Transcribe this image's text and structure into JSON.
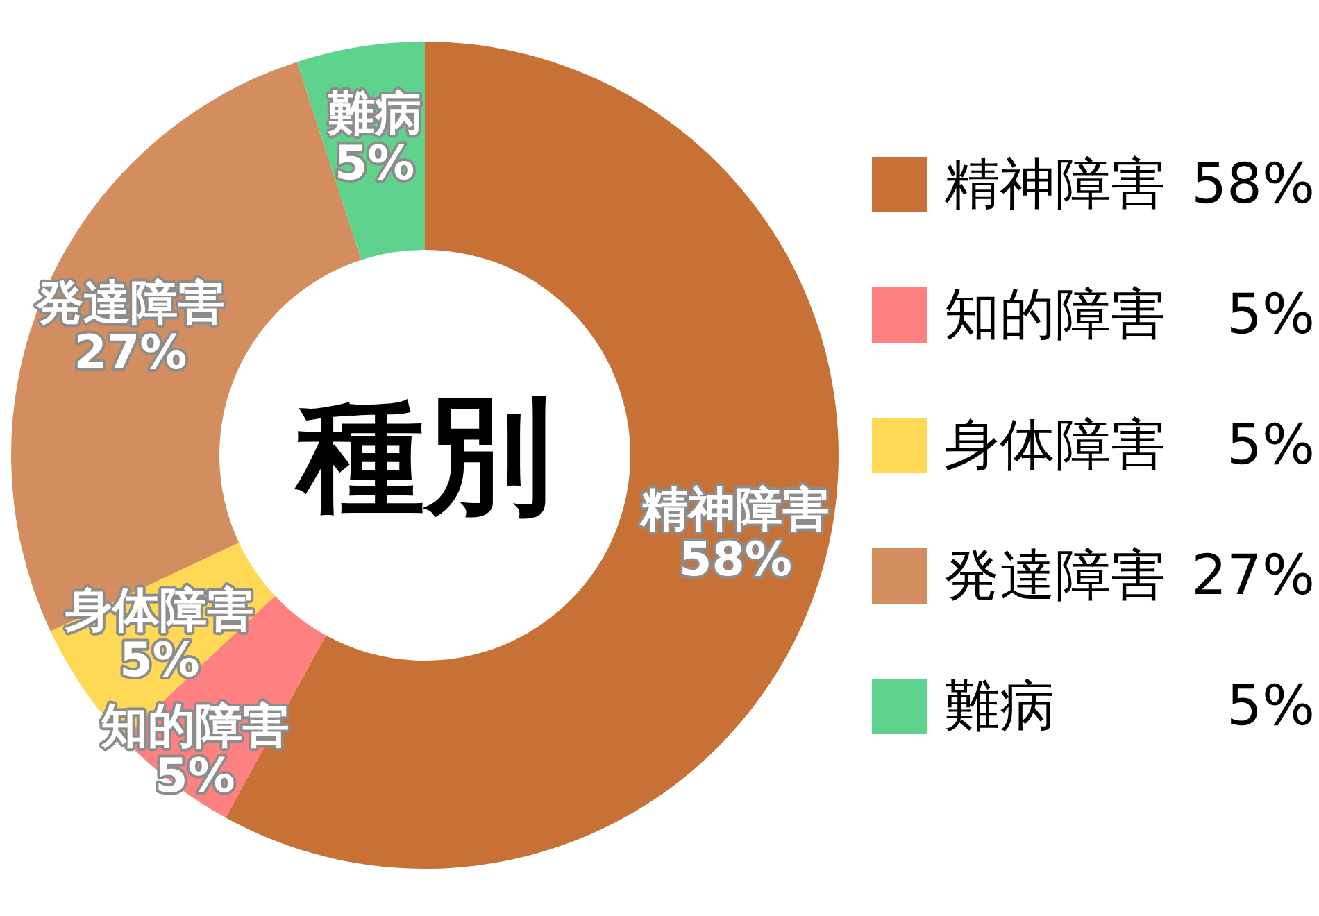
{
  "chart_data": {
    "type": "donut",
    "title": "種別",
    "categories": [
      "精神障害",
      "知的障害",
      "身体障害",
      "発達障害",
      "難病"
    ],
    "values": [
      58,
      5,
      5,
      27,
      5
    ],
    "colors": [
      "#c87137",
      "#ff8080",
      "#ffd955",
      "#d38d5f",
      "#5fd38d"
    ],
    "value_labels": [
      "58%",
      "5%",
      "5%",
      "27%",
      "5%"
    ],
    "legend": "right"
  }
}
